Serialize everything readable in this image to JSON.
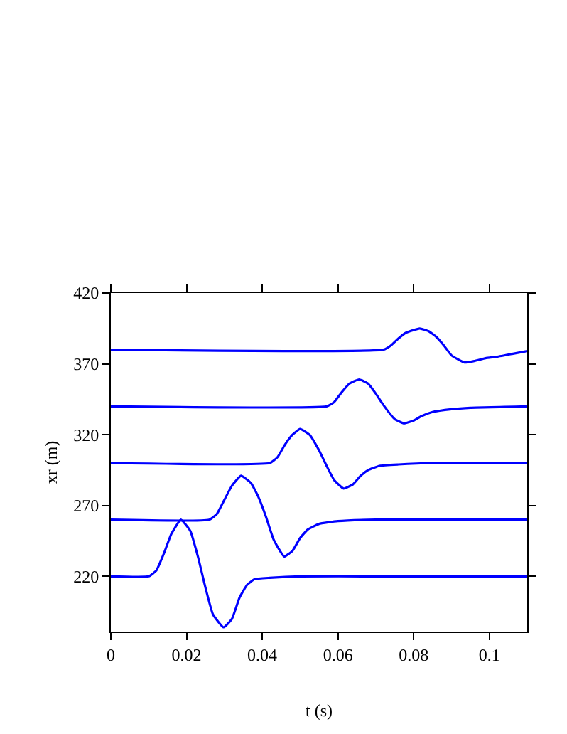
{
  "chart_data": {
    "type": "line",
    "xlabel": "t (s)",
    "ylabel": "xr (m)",
    "xlim": [
      0,
      0.11
    ],
    "xticks": [
      0,
      0.02,
      0.04,
      0.06,
      0.08,
      0.1
    ],
    "ylim": [
      181,
      420
    ],
    "yticks": [
      220,
      270,
      320,
      370,
      420
    ],
    "series": [
      {
        "color": "#0000ff",
        "x": [
          0,
          0.01,
          0.012,
          0.014,
          0.016,
          0.0185,
          0.021,
          0.023,
          0.025,
          0.027,
          0.0298,
          0.032,
          0.034,
          0.036,
          0.038,
          0.042,
          0.05,
          0.07,
          0.11
        ],
        "values": [
          220,
          220,
          224,
          236,
          250,
          260,
          252,
          234,
          212,
          193,
          184,
          190,
          205,
          214,
          218,
          219,
          220,
          220,
          220
        ]
      },
      {
        "color": "#0000ff",
        "x": [
          0,
          0.026,
          0.028,
          0.03,
          0.032,
          0.0344,
          0.037,
          0.039,
          0.041,
          0.043,
          0.0458,
          0.048,
          0.05,
          0.052,
          0.055,
          0.06,
          0.07,
          0.11
        ],
        "values": [
          260,
          260,
          264,
          274,
          284,
          291,
          286,
          276,
          262,
          246,
          234,
          238,
          247,
          253,
          257,
          259,
          260,
          260
        ]
      },
      {
        "color": "#0000ff",
        "x": [
          0,
          0.042,
          0.044,
          0.046,
          0.048,
          0.05,
          0.0525,
          0.055,
          0.057,
          0.059,
          0.0615,
          0.064,
          0.066,
          0.068,
          0.071,
          0.076,
          0.085,
          0.11
        ],
        "values": [
          300,
          300,
          304,
          313,
          320,
          324,
          320,
          309,
          298,
          288,
          282,
          285,
          291,
          295,
          298,
          299,
          300,
          300
        ]
      },
      {
        "color": "#0000ff",
        "x": [
          0,
          0.057,
          0.059,
          0.061,
          0.063,
          0.0656,
          0.068,
          0.07,
          0.072,
          0.075,
          0.0775,
          0.08,
          0.082,
          0.085,
          0.09,
          0.095,
          0.11
        ],
        "values": [
          340,
          340,
          343,
          350,
          356,
          359,
          356,
          349,
          341,
          331,
          328,
          330,
          333,
          336,
          338,
          339,
          340
        ]
      },
      {
        "color": "#0000ff",
        "x": [
          0,
          0.072,
          0.074,
          0.076,
          0.078,
          0.0816,
          0.084,
          0.086,
          0.088,
          0.09,
          0.0934,
          0.096,
          0.099,
          0.102,
          0.106,
          0.11
        ],
        "values": [
          380,
          380,
          383,
          388,
          392,
          395,
          393,
          389,
          383,
          376,
          371,
          372,
          374,
          375,
          377,
          379
        ]
      }
    ]
  }
}
